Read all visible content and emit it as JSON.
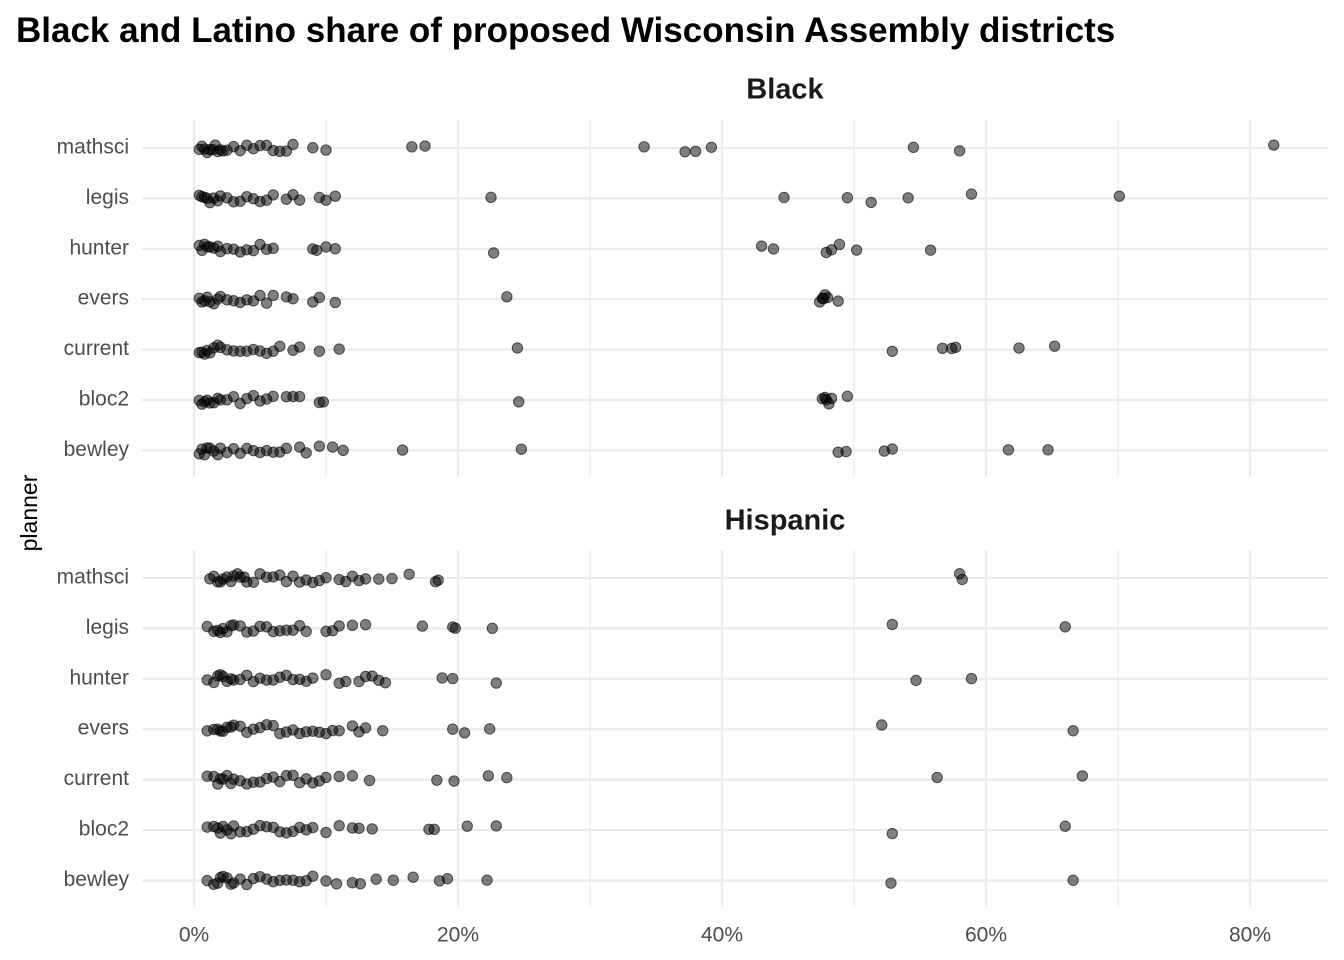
{
  "chart_data": {
    "type": "scatter",
    "title": "Black and Latino share of proposed Wisconsin Assembly districts",
    "ylabel": "planner",
    "xlabel": "",
    "categories": [
      "mathsci",
      "legis",
      "hunter",
      "evers",
      "current",
      "bloc2",
      "bewley"
    ],
    "x_ticks": [
      "0%",
      "20%",
      "40%",
      "60%",
      "80%"
    ],
    "xlim": [
      -0.04,
      0.86
    ],
    "grid": true,
    "point_color": "#000000",
    "point_opacity": 0.5,
    "panels": [
      {
        "name": "Black",
        "series": [
          {
            "name": "mathsci",
            "values": [
              0.004,
              0.006,
              0.008,
              0.01,
              0.012,
              0.014,
              0.016,
              0.018,
              0.02,
              0.022,
              0.025,
              0.03,
              0.035,
              0.04,
              0.045,
              0.05,
              0.055,
              0.06,
              0.065,
              0.07,
              0.075,
              0.09,
              0.1,
              0.165,
              0.175,
              0.341,
              0.372,
              0.38,
              0.392,
              0.545,
              0.58,
              0.818
            ]
          },
          {
            "name": "legis",
            "values": [
              0.004,
              0.006,
              0.008,
              0.01,
              0.012,
              0.015,
              0.018,
              0.02,
              0.025,
              0.03,
              0.035,
              0.04,
              0.045,
              0.05,
              0.055,
              0.06,
              0.07,
              0.075,
              0.08,
              0.095,
              0.1,
              0.107,
              0.225,
              0.447,
              0.495,
              0.513,
              0.541,
              0.589,
              0.701
            ]
          },
          {
            "name": "hunter",
            "values": [
              0.004,
              0.006,
              0.008,
              0.01,
              0.012,
              0.015,
              0.018,
              0.02,
              0.025,
              0.03,
              0.035,
              0.04,
              0.045,
              0.05,
              0.055,
              0.06,
              0.09,
              0.093,
              0.1,
              0.107,
              0.227,
              0.43,
              0.439,
              0.479,
              0.483,
              0.489,
              0.502,
              0.558
            ]
          },
          {
            "name": "evers",
            "values": [
              0.004,
              0.006,
              0.008,
              0.01,
              0.012,
              0.015,
              0.018,
              0.02,
              0.025,
              0.03,
              0.035,
              0.04,
              0.045,
              0.05,
              0.055,
              0.06,
              0.07,
              0.075,
              0.09,
              0.095,
              0.107,
              0.237,
              0.474,
              0.476,
              0.477,
              0.478,
              0.48,
              0.488
            ]
          },
          {
            "name": "current",
            "values": [
              0.004,
              0.006,
              0.008,
              0.01,
              0.012,
              0.015,
              0.018,
              0.02,
              0.025,
              0.03,
              0.035,
              0.04,
              0.045,
              0.05,
              0.055,
              0.06,
              0.065,
              0.075,
              0.08,
              0.095,
              0.11,
              0.245,
              0.529,
              0.567,
              0.574,
              0.577,
              0.625,
              0.652
            ]
          },
          {
            "name": "bloc2",
            "values": [
              0.004,
              0.006,
              0.008,
              0.01,
              0.012,
              0.015,
              0.018,
              0.02,
              0.025,
              0.03,
              0.035,
              0.04,
              0.045,
              0.05,
              0.055,
              0.06,
              0.07,
              0.075,
              0.08,
              0.095,
              0.098,
              0.246,
              0.476,
              0.478,
              0.479,
              0.481,
              0.483,
              0.495
            ]
          },
          {
            "name": "bewley",
            "values": [
              0.004,
              0.006,
              0.008,
              0.01,
              0.012,
              0.015,
              0.018,
              0.02,
              0.025,
              0.03,
              0.035,
              0.04,
              0.045,
              0.05,
              0.055,
              0.06,
              0.065,
              0.07,
              0.08,
              0.085,
              0.095,
              0.105,
              0.113,
              0.158,
              0.248,
              0.488,
              0.494,
              0.523,
              0.529,
              0.617,
              0.647
            ]
          }
        ]
      },
      {
        "name": "Hispanic",
        "series": [
          {
            "name": "mathsci",
            "values": [
              0.012,
              0.015,
              0.018,
              0.02,
              0.022,
              0.025,
              0.028,
              0.03,
              0.033,
              0.035,
              0.038,
              0.04,
              0.045,
              0.05,
              0.055,
              0.06,
              0.065,
              0.07,
              0.075,
              0.08,
              0.085,
              0.09,
              0.095,
              0.1,
              0.11,
              0.115,
              0.12,
              0.125,
              0.13,
              0.14,
              0.15,
              0.163,
              0.183,
              0.185,
              0.58,
              0.582
            ]
          },
          {
            "name": "legis",
            "values": [
              0.01,
              0.015,
              0.018,
              0.02,
              0.022,
              0.025,
              0.028,
              0.03,
              0.035,
              0.04,
              0.045,
              0.05,
              0.055,
              0.06,
              0.065,
              0.07,
              0.075,
              0.08,
              0.085,
              0.1,
              0.105,
              0.11,
              0.12,
              0.13,
              0.173,
              0.196,
              0.198,
              0.226,
              0.529,
              0.66
            ]
          },
          {
            "name": "hunter",
            "values": [
              0.01,
              0.015,
              0.018,
              0.02,
              0.022,
              0.025,
              0.028,
              0.03,
              0.035,
              0.04,
              0.045,
              0.05,
              0.055,
              0.06,
              0.065,
              0.07,
              0.075,
              0.08,
              0.085,
              0.09,
              0.1,
              0.11,
              0.115,
              0.125,
              0.13,
              0.135,
              0.14,
              0.145,
              0.188,
              0.196,
              0.229,
              0.547,
              0.589
            ]
          },
          {
            "name": "evers",
            "values": [
              0.01,
              0.015,
              0.018,
              0.02,
              0.022,
              0.025,
              0.028,
              0.03,
              0.035,
              0.04,
              0.045,
              0.05,
              0.055,
              0.06,
              0.065,
              0.07,
              0.075,
              0.08,
              0.085,
              0.09,
              0.095,
              0.1,
              0.105,
              0.11,
              0.12,
              0.125,
              0.13,
              0.143,
              0.196,
              0.205,
              0.224,
              0.521,
              0.666
            ]
          },
          {
            "name": "current",
            "values": [
              0.01,
              0.015,
              0.018,
              0.02,
              0.022,
              0.025,
              0.028,
              0.03,
              0.035,
              0.04,
              0.045,
              0.05,
              0.055,
              0.06,
              0.065,
              0.07,
              0.075,
              0.08,
              0.085,
              0.09,
              0.095,
              0.1,
              0.11,
              0.12,
              0.133,
              0.184,
              0.197,
              0.223,
              0.237,
              0.563,
              0.673
            ]
          },
          {
            "name": "bloc2",
            "values": [
              0.01,
              0.015,
              0.018,
              0.02,
              0.022,
              0.025,
              0.028,
              0.03,
              0.035,
              0.04,
              0.045,
              0.05,
              0.055,
              0.06,
              0.065,
              0.07,
              0.075,
              0.08,
              0.085,
              0.09,
              0.1,
              0.11,
              0.12,
              0.125,
              0.135,
              0.178,
              0.182,
              0.207,
              0.229,
              0.529,
              0.66
            ]
          },
          {
            "name": "bewley",
            "values": [
              0.01,
              0.015,
              0.018,
              0.02,
              0.022,
              0.025,
              0.028,
              0.03,
              0.035,
              0.04,
              0.045,
              0.05,
              0.055,
              0.06,
              0.065,
              0.07,
              0.075,
              0.08,
              0.085,
              0.09,
              0.1,
              0.108,
              0.12,
              0.126,
              0.138,
              0.151,
              0.166,
              0.186,
              0.192,
              0.222,
              0.528,
              0.666
            ]
          }
        ]
      }
    ]
  }
}
